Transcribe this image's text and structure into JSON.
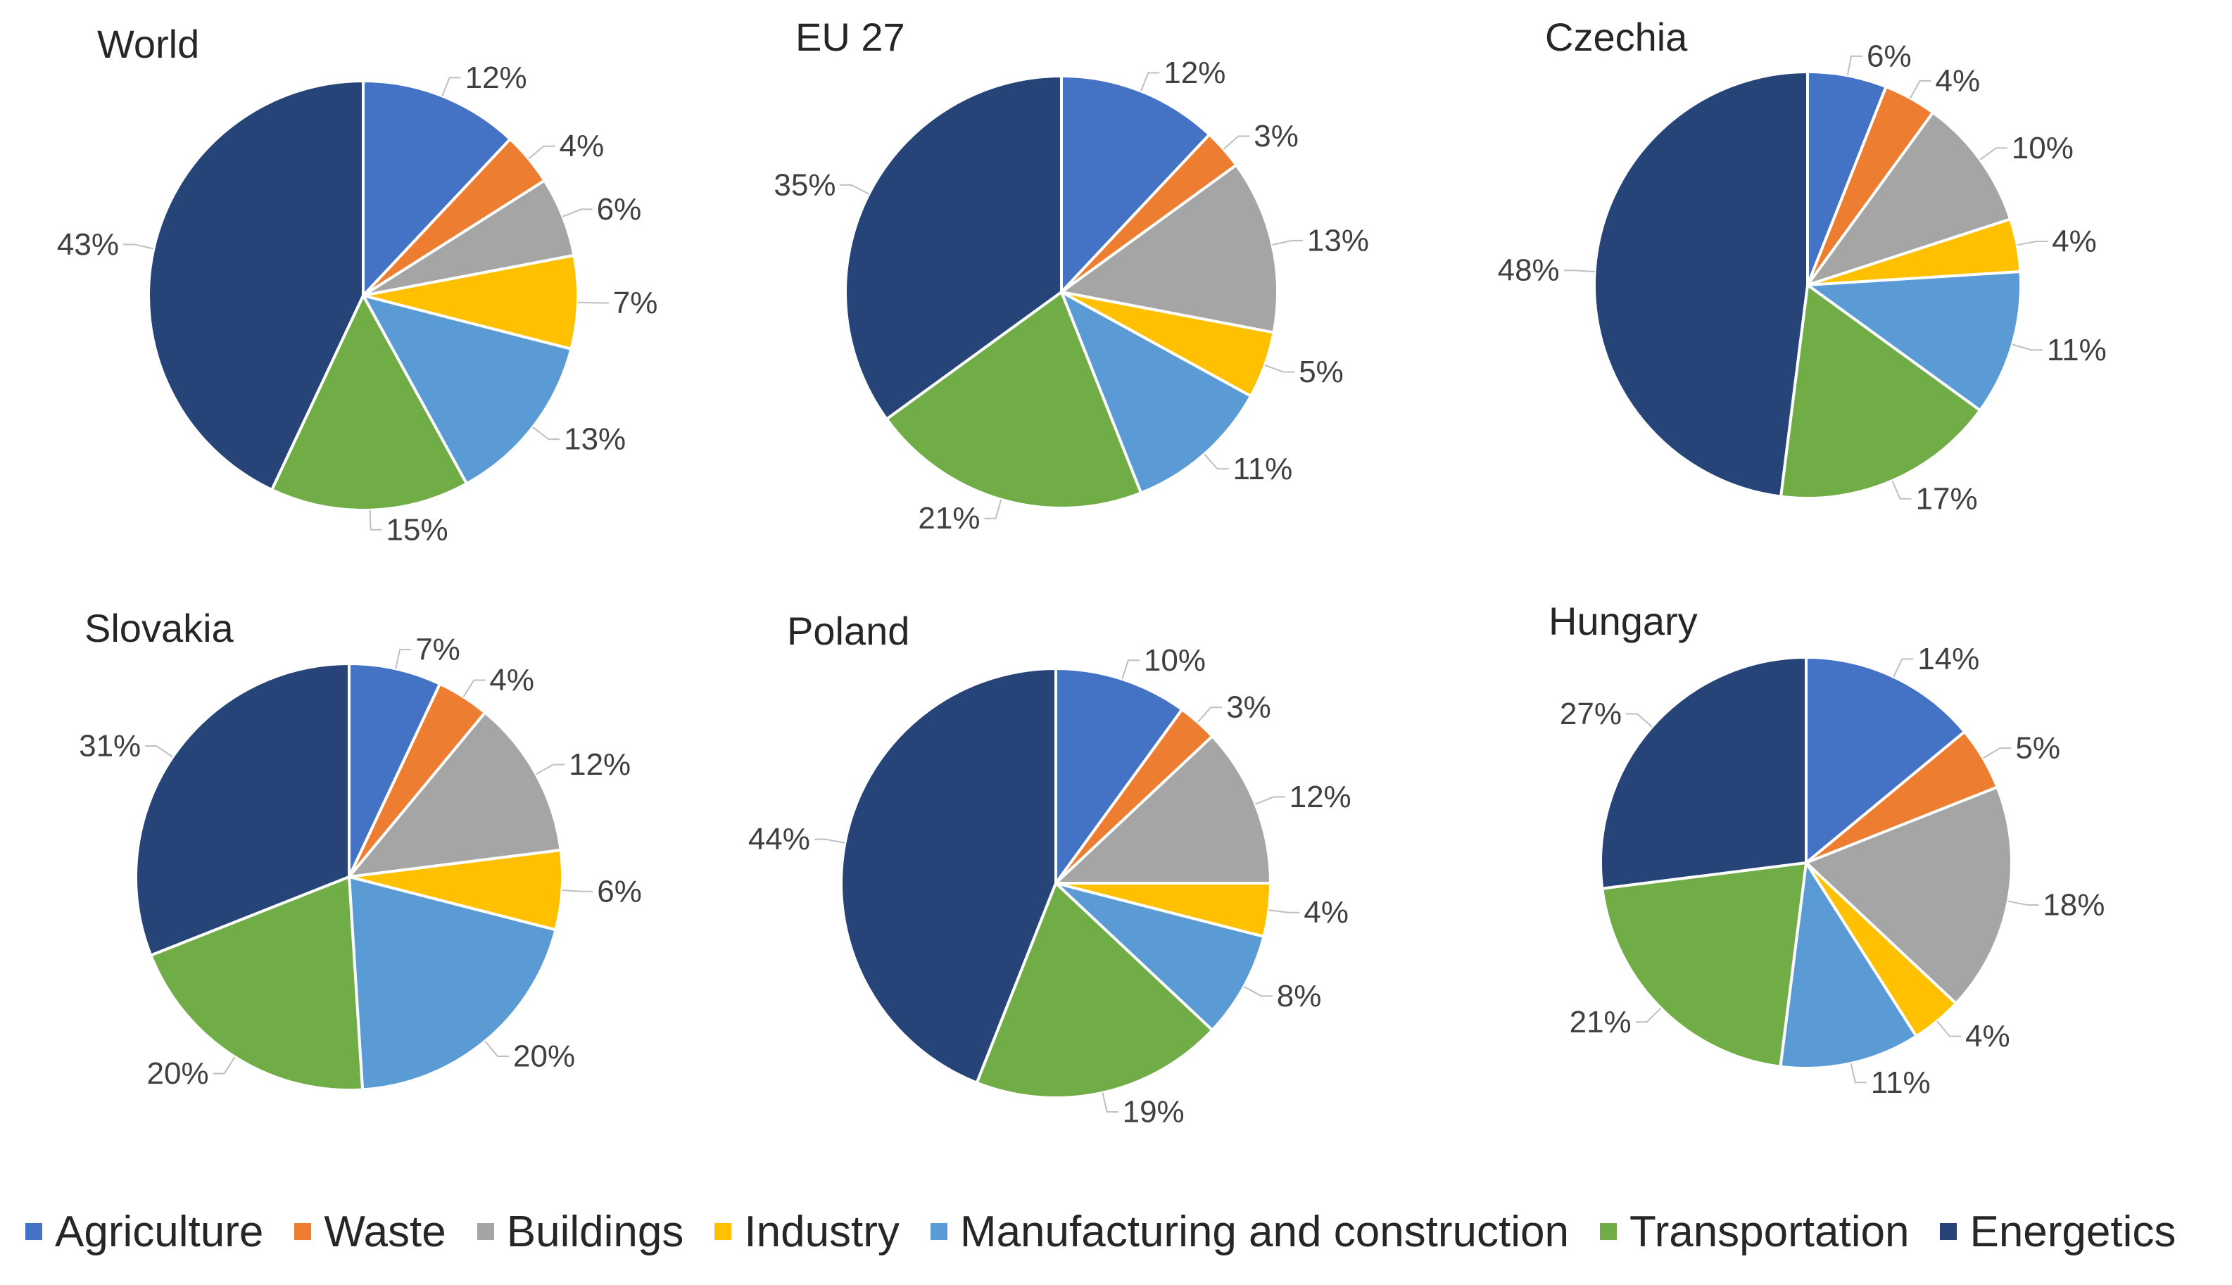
{
  "categories": [
    {
      "name": "Agriculture",
      "color": "#4472C4"
    },
    {
      "name": "Waste",
      "color": "#ED7D31"
    },
    {
      "name": "Buildings",
      "color": "#A5A5A5"
    },
    {
      "name": "Industry",
      "color": "#FFC000"
    },
    {
      "name": "Manufacturing and construction",
      "color": "#5B9BD5"
    },
    {
      "name": "Transportation",
      "color": "#70AD47"
    },
    {
      "name": "Energetics",
      "color": "#264478"
    }
  ],
  "chart_data": [
    {
      "type": "pie",
      "title": "World",
      "categories": [
        "Agriculture",
        "Waste",
        "Buildings",
        "Industry",
        "Manufacturing and construction",
        "Transportation",
        "Energetics"
      ],
      "values": [
        12,
        4,
        6,
        7,
        13,
        15,
        43
      ],
      "labels": [
        "12%",
        "4%",
        "6%",
        "7%",
        "13%",
        "15%",
        "43%"
      ]
    },
    {
      "type": "pie",
      "title": "EU 27",
      "categories": [
        "Agriculture",
        "Waste",
        "Buildings",
        "Industry",
        "Manufacturing and construction",
        "Transportation",
        "Energetics"
      ],
      "values": [
        12,
        3,
        13,
        5,
        11,
        21,
        35
      ],
      "labels": [
        "12%",
        "3%",
        "13%",
        "5%",
        "11%",
        "21%",
        "35%"
      ]
    },
    {
      "type": "pie",
      "title": "Czechia",
      "categories": [
        "Agriculture",
        "Waste",
        "Buildings",
        "Industry",
        "Manufacturing and construction",
        "Transportation",
        "Energetics"
      ],
      "values": [
        6,
        4,
        10,
        4,
        11,
        17,
        48
      ],
      "labels": [
        "6%",
        "4%",
        "10%",
        "4%",
        "11%",
        "17%",
        "48%"
      ]
    },
    {
      "type": "pie",
      "title": "Slovakia",
      "categories": [
        "Agriculture",
        "Waste",
        "Buildings",
        "Industry",
        "Manufacturing and construction",
        "Transportation",
        "Energetics"
      ],
      "values": [
        7,
        4,
        12,
        6,
        20,
        20,
        31
      ],
      "labels": [
        "7%",
        "4%",
        "12%",
        "6%",
        "20%",
        "20%",
        "31%"
      ]
    },
    {
      "type": "pie",
      "title": "Poland",
      "categories": [
        "Agriculture",
        "Waste",
        "Buildings",
        "Industry",
        "Manufacturing and construction",
        "Transportation",
        "Energetics"
      ],
      "values": [
        10,
        3,
        12,
        4,
        8,
        19,
        44
      ],
      "labels": [
        "10%",
        "3%",
        "12%",
        "4%",
        "8%",
        "19%",
        "44%"
      ]
    },
    {
      "type": "pie",
      "title": "Hungary",
      "categories": [
        "Agriculture",
        "Waste",
        "Buildings",
        "Industry",
        "Manufacturing and construction",
        "Transportation",
        "Energetics"
      ],
      "values": [
        14,
        5,
        18,
        4,
        11,
        21,
        27
      ],
      "labels": [
        "14%",
        "5%",
        "18%",
        "4%",
        "11%",
        "21%",
        "27%"
      ]
    }
  ]
}
